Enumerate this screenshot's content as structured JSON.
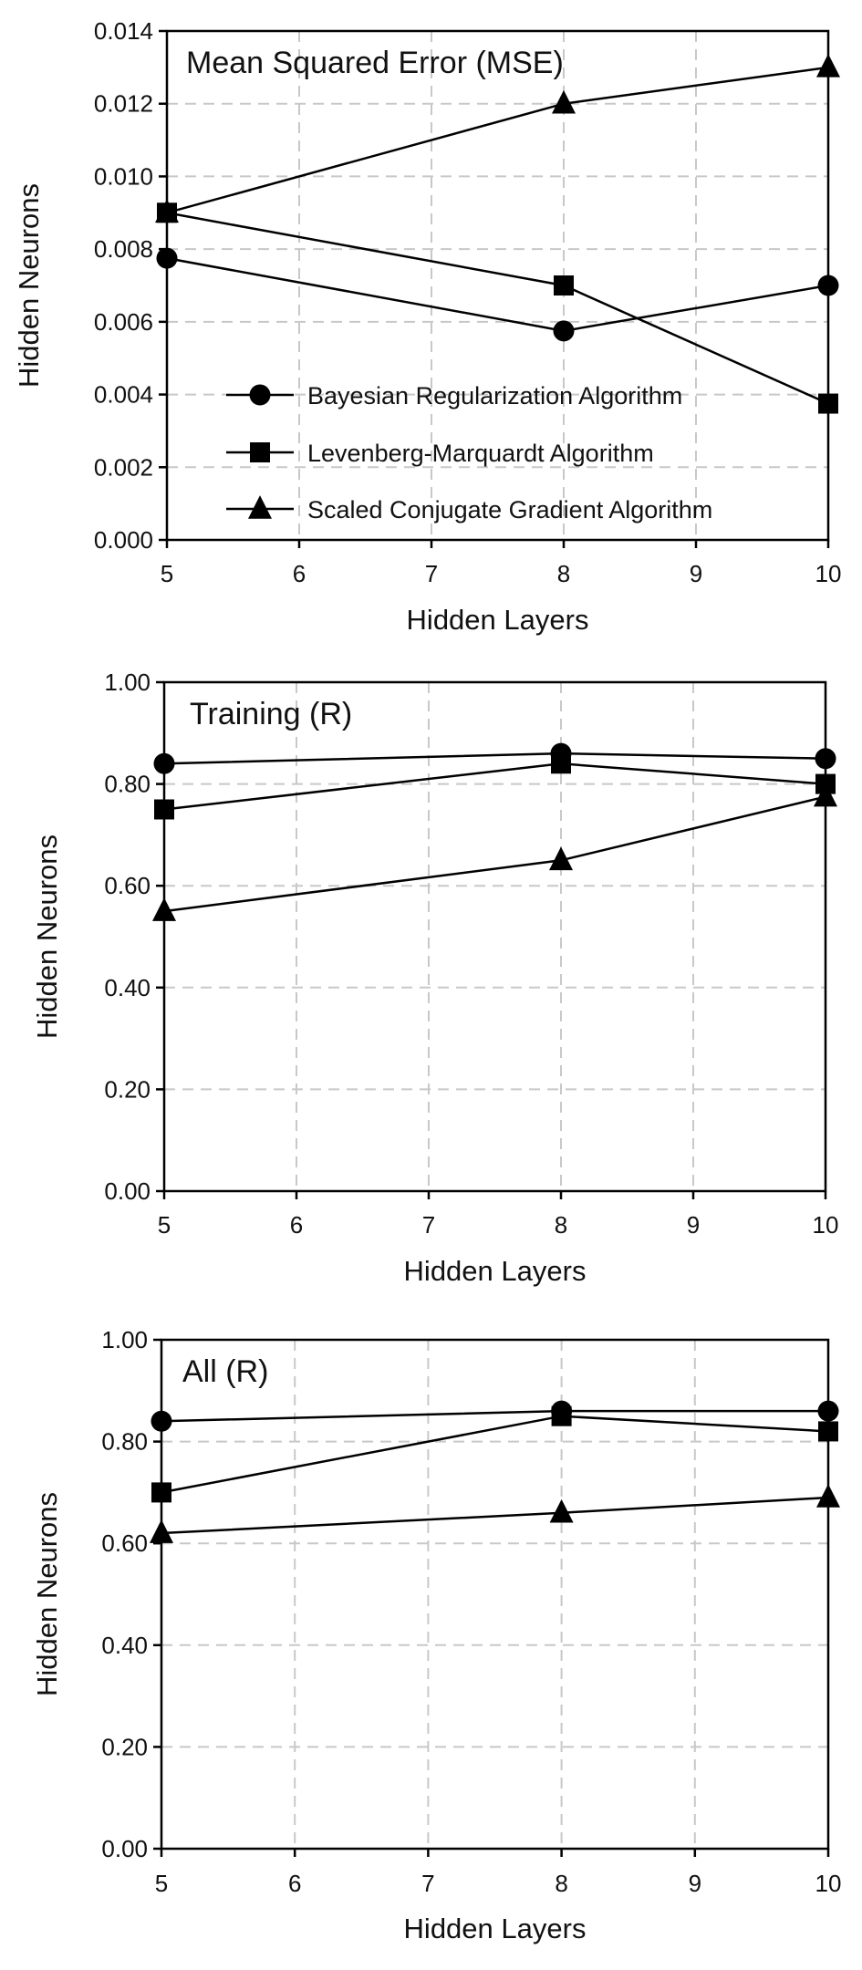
{
  "figure": {
    "x_label": "Hidden Layers",
    "y_label": "Hidden Neurons"
  },
  "legend": [
    {
      "label": "Bayesian Regularization Algorithm",
      "marker": "circle-icon"
    },
    {
      "label": "Levenberg-Marquardt Algorithm",
      "marker": "square-icon"
    },
    {
      "label": "Scaled Conjugate Gradient Algorithm",
      "marker": "triangle-icon"
    }
  ],
  "chart_data": [
    {
      "type": "line",
      "title": "Mean Squared Error (MSE)",
      "xlabel": "Hidden Layers",
      "ylabel": "Hidden Neurons",
      "x": [
        5,
        8,
        10
      ],
      "xlim": [
        5,
        10
      ],
      "xticks": [
        5,
        6,
        7,
        8,
        9,
        10
      ],
      "xtick_labels": [
        "5",
        "6",
        "7",
        "8",
        "9",
        "10"
      ],
      "ylim": [
        0,
        0.014
      ],
      "yticks": [
        0,
        0.002,
        0.004,
        0.006,
        0.008,
        0.01,
        0.012,
        0.014
      ],
      "ytick_labels": [
        "0.000",
        "0.002",
        "0.004",
        "0.006",
        "0.008",
        "0.010",
        "0.012",
        "0.014"
      ],
      "grid": true,
      "legend_position": "bottom-left",
      "series": [
        {
          "name": "Bayesian Regularization Algorithm",
          "marker": "circle",
          "values": [
            0.00775,
            0.00575,
            0.007
          ]
        },
        {
          "name": "Levenberg-Marquardt Algorithm",
          "marker": "square",
          "values": [
            0.009,
            0.007,
            0.00375
          ]
        },
        {
          "name": "Scaled Conjugate Gradient Algorithm",
          "marker": "triangle",
          "values": [
            0.009,
            0.012,
            0.013
          ]
        }
      ]
    },
    {
      "type": "line",
      "title": "Training (R)",
      "xlabel": "Hidden Layers",
      "ylabel": "Hidden Neurons",
      "x": [
        5,
        8,
        10
      ],
      "xlim": [
        5,
        10
      ],
      "xticks": [
        5,
        6,
        7,
        8,
        9,
        10
      ],
      "xtick_labels": [
        "5",
        "6",
        "7",
        "8",
        "9",
        "10"
      ],
      "ylim": [
        0,
        1
      ],
      "yticks": [
        0,
        0.2,
        0.4,
        0.6,
        0.8,
        1.0
      ],
      "ytick_labels": [
        "0.00",
        "0.20",
        "0.40",
        "0.60",
        "0.80",
        "1.00"
      ],
      "grid": true,
      "series": [
        {
          "name": "Bayesian Regularization Algorithm",
          "marker": "circle",
          "values": [
            0.84,
            0.86,
            0.85
          ]
        },
        {
          "name": "Levenberg-Marquardt Algorithm",
          "marker": "square",
          "values": [
            0.75,
            0.84,
            0.8
          ]
        },
        {
          "name": "Scaled Conjugate Gradient Algorithm",
          "marker": "triangle",
          "values": [
            0.55,
            0.65,
            0.775
          ]
        }
      ]
    },
    {
      "type": "line",
      "title": "All (R)",
      "xlabel": "Hidden Layers",
      "ylabel": "Hidden Neurons",
      "x": [
        5,
        8,
        10
      ],
      "xlim": [
        5,
        10
      ],
      "xticks": [
        5,
        6,
        7,
        8,
        9,
        10
      ],
      "xtick_labels": [
        "5",
        "6",
        "7",
        "8",
        "9",
        "10"
      ],
      "ylim": [
        0,
        1
      ],
      "yticks": [
        0,
        0.2,
        0.4,
        0.6,
        0.8,
        1.0
      ],
      "ytick_labels": [
        "0.00",
        "0.20",
        "0.40",
        "0.60",
        "0.80",
        "1.00"
      ],
      "grid": true,
      "series": [
        {
          "name": "Bayesian Regularization Algorithm",
          "marker": "circle",
          "values": [
            0.84,
            0.86,
            0.86
          ]
        },
        {
          "name": "Levenberg-Marquardt Algorithm",
          "marker": "square",
          "values": [
            0.7,
            0.85,
            0.82
          ]
        },
        {
          "name": "Scaled Conjugate Gradient Algorithm",
          "marker": "triangle",
          "values": [
            0.62,
            0.66,
            0.69
          ]
        }
      ]
    }
  ]
}
